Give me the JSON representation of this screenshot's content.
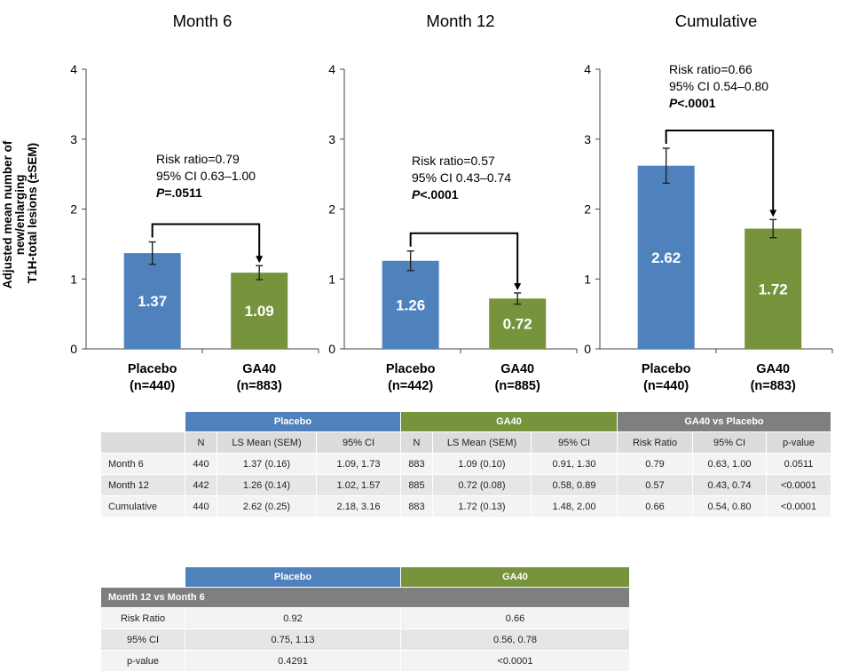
{
  "chart_data": {
    "type": "bar",
    "ylabel": "Adjusted mean number of new/enlarging T1H-total lesions (±SEM)",
    "ylim": [
      0,
      4
    ],
    "yticks": [
      "0",
      "1",
      "2",
      "3",
      "4"
    ],
    "colors": {
      "placebo": "#4f81bd",
      "ga40": "#77933c"
    },
    "panels": [
      {
        "title": "Month 6",
        "categories": [
          "Placebo",
          "GA40"
        ],
        "sublabels": [
          "(n=440)",
          "(n=883)"
        ],
        "values": [
          1.37,
          1.09
        ],
        "value_labels": [
          "1.37",
          "1.09"
        ],
        "sem": [
          0.16,
          0.1
        ],
        "annotation": [
          "Risk ratio=0.79",
          "95% CI 0.63–1.00",
          "P=.0511"
        ]
      },
      {
        "title": "Month 12",
        "categories": [
          "Placebo",
          "GA40"
        ],
        "sublabels": [
          "(n=442)",
          "(n=885)"
        ],
        "values": [
          1.26,
          0.72
        ],
        "value_labels": [
          "1.26",
          "0.72"
        ],
        "sem": [
          0.14,
          0.08
        ],
        "annotation": [
          "Risk ratio=0.57",
          "95% CI 0.43–0.74",
          "P<.0001"
        ]
      },
      {
        "title": "Cumulative",
        "categories": [
          "Placebo",
          "GA40"
        ],
        "sublabels": [
          "(n=440)",
          "(n=883)"
        ],
        "values": [
          2.62,
          1.72
        ],
        "value_labels": [
          "2.62",
          "1.72"
        ],
        "sem": [
          0.25,
          0.13
        ],
        "annotation": [
          "Risk ratio=0.66",
          "95% CI 0.54–0.80",
          "P<.0001"
        ]
      }
    ]
  },
  "table1": {
    "groups": [
      {
        "label": "Placebo",
        "color": "#4f81bd"
      },
      {
        "label": "GA40",
        "color": "#77933c"
      },
      {
        "label": "GA40 vs Placebo",
        "color": "#7f7f7f"
      }
    ],
    "columns": [
      "N",
      "LS Mean (SEM)",
      "95% CI",
      "N",
      "LS Mean (SEM)",
      "95% CI",
      "Risk Ratio",
      "95% CI",
      "p-value"
    ],
    "rows": [
      {
        "label": "Month 6",
        "cells": [
          "440",
          "1.37 (0.16)",
          "1.09, 1.73",
          "883",
          "1.09 (0.10)",
          "0.91, 1.30",
          "0.79",
          "0.63, 1.00",
          "0.0511"
        ]
      },
      {
        "label": "Month 12",
        "cells": [
          "442",
          "1.26 (0.14)",
          "1.02, 1.57",
          "885",
          "0.72 (0.08)",
          "0.58, 0.89",
          "0.57",
          "0.43, 0.74",
          "<0.0001"
        ]
      },
      {
        "label": "Cumulative",
        "cells": [
          "440",
          "2.62 (0.25)",
          "2.18, 3.16",
          "883",
          "1.72 (0.13)",
          "1.48, 2.00",
          "0.66",
          "0.54, 0.80",
          "<0.0001"
        ]
      }
    ]
  },
  "table2": {
    "groups": [
      {
        "label": "Placebo",
        "color": "#4f81bd"
      },
      {
        "label": "GA40",
        "color": "#77933c"
      }
    ],
    "section": "Month 12 vs Month 6",
    "rows": [
      {
        "label": "Risk Ratio",
        "cells": [
          "0.92",
          "0.66"
        ]
      },
      {
        "label": "95% CI",
        "cells": [
          "0.75, 1.13",
          "0.56, 0.78"
        ]
      },
      {
        "label": "p-value",
        "cells": [
          "0.4291",
          "<0.0001"
        ]
      }
    ]
  }
}
